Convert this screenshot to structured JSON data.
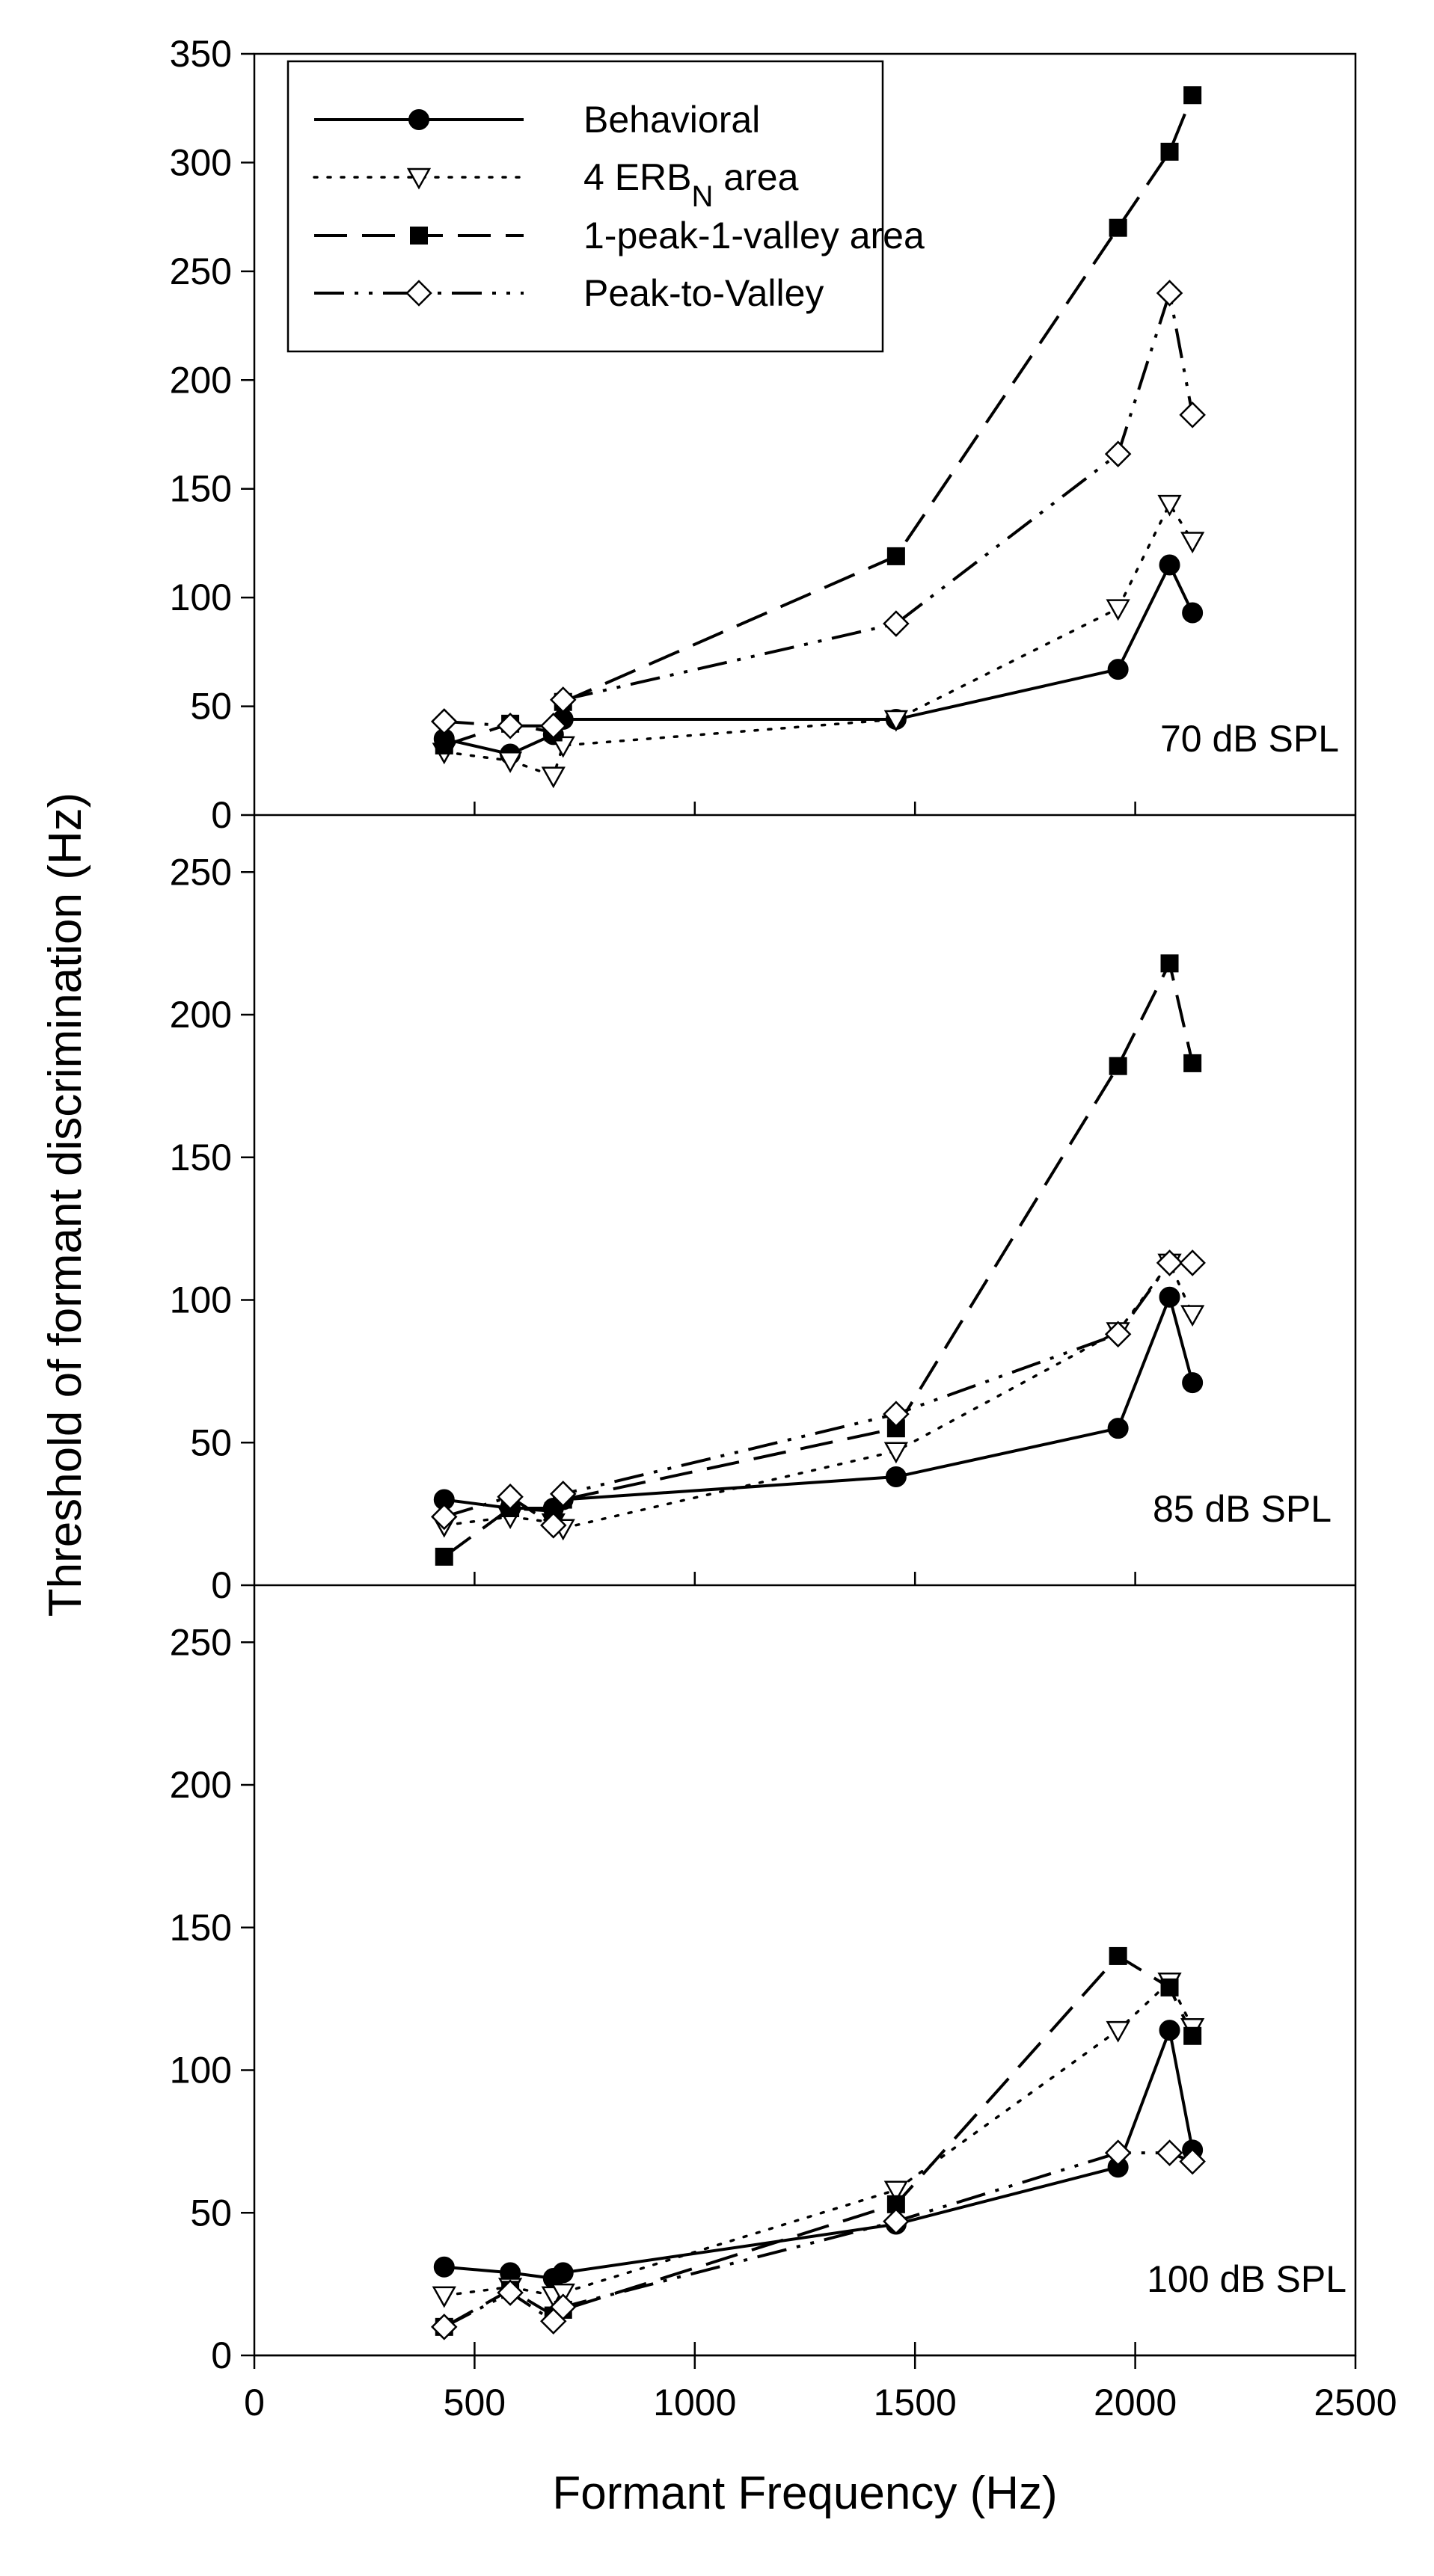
{
  "chart_data": {
    "type": "line",
    "xlabel": "Formant Frequency (Hz)",
    "ylabel": "Threshold of formant discrimination (Hz)",
    "xlim": [
      0,
      2500
    ],
    "x_ticks": [
      0,
      500,
      1000,
      1500,
      2000,
      2500
    ],
    "legend": {
      "placement": "top-left of top panel",
      "entries": [
        {
          "label": "Behavioral",
          "sub": ""
        },
        {
          "label": "4 ERB",
          "sub": "N",
          "suffix": " area"
        },
        {
          "label": "1-peak-1-valley area",
          "sub": ""
        },
        {
          "label": "Peak-to-Valley",
          "sub": ""
        }
      ]
    },
    "series_styles": [
      {
        "name": "Behavioral",
        "marker": "circle-filled",
        "line": "solid"
      },
      {
        "name": "4 ERBN area",
        "marker": "triangle-down-open",
        "line": "dotted"
      },
      {
        "name": "1-peak-1-valley area",
        "marker": "square-filled",
        "line": "dashed"
      },
      {
        "name": "Peak-to-Valley",
        "marker": "diamond-open",
        "line": "dash-dot-dot"
      }
    ],
    "panels": [
      {
        "label": "70 dB SPL",
        "ylim": [
          0,
          350
        ],
        "y_ticks": [
          0,
          50,
          100,
          150,
          200,
          250,
          300,
          350
        ],
        "series": [
          {
            "name": "Behavioral",
            "x": [
              431,
              581,
              679,
              701,
              1457,
              1961,
              2078,
              2130
            ],
            "y": [
              35,
              28,
              37,
              44,
              44,
              67,
              115,
              93
            ]
          },
          {
            "name": "4 ERBN area",
            "x": [
              431,
              581,
              679,
              701,
              1457,
              1961,
              2078,
              2130
            ],
            "y": [
              29,
              25,
              18,
              32,
              44,
              95,
              143,
              126
            ]
          },
          {
            "name": "1-peak-1-valley area",
            "x": [
              431,
              581,
              679,
              701,
              1457,
              1961,
              2078,
              2130
            ],
            "y": [
              32,
              42,
              38,
              52,
              119,
              270,
              305,
              331
            ]
          },
          {
            "name": "Peak-to-Valley",
            "x": [
              431,
              581,
              679,
              701,
              1457,
              1961,
              2078,
              2130
            ],
            "y": [
              43,
              41,
              41,
              53,
              88,
              166,
              240,
              184
            ]
          }
        ]
      },
      {
        "label": "85 dB SPL",
        "ylim": [
          0,
          270
        ],
        "y_ticks": [
          0,
          50,
          100,
          150,
          200,
          250
        ],
        "series": [
          {
            "name": "Behavioral",
            "x": [
              431,
              581,
              679,
              701,
              1457,
              1961,
              2078,
              2130
            ],
            "y": [
              30,
              27,
              27,
              30,
              38,
              55,
              101,
              71
            ]
          },
          {
            "name": "4 ERBN area",
            "x": [
              431,
              581,
              679,
              701,
              1457,
              1961,
              2078,
              2130
            ],
            "y": [
              21,
              24,
              22,
              20,
              47,
              89,
              113,
              95
            ]
          },
          {
            "name": "1-peak-1-valley area",
            "x": [
              431,
              581,
              679,
              701,
              1457,
              1961,
              2078,
              2130
            ],
            "y": [
              10,
              27,
              26,
              30,
              55,
              182,
              218,
              183
            ]
          },
          {
            "name": "Peak-to-Valley",
            "x": [
              431,
              581,
              679,
              701,
              1457,
              1961,
              2078,
              2130
            ],
            "y": [
              24,
              31,
              21,
              32,
              60,
              88,
              113,
              113
            ]
          }
        ]
      },
      {
        "label": "100 dB SPL",
        "ylim": [
          0,
          270
        ],
        "y_ticks": [
          0,
          50,
          100,
          150,
          200,
          250
        ],
        "series": [
          {
            "name": "Behavioral",
            "x": [
              431,
              581,
              679,
              701,
              1457,
              1961,
              2078,
              2130
            ],
            "y": [
              31,
              29,
              27,
              29,
              46,
              66,
              114,
              72
            ]
          },
          {
            "name": "4 ERBN area",
            "x": [
              431,
              581,
              679,
              701,
              1457,
              1961,
              2078,
              2130
            ],
            "y": [
              21,
              24,
              21,
              22,
              58,
              114,
              131,
              115
            ]
          },
          {
            "name": "1-peak-1-valley area",
            "x": [
              431,
              581,
              679,
              701,
              1457,
              1961,
              2078,
              2130
            ],
            "y": [
              10,
              23,
              14,
              16,
              53,
              140,
              129,
              112
            ]
          },
          {
            "name": "Peak-to-Valley",
            "x": [
              431,
              581,
              679,
              701,
              1457,
              1961,
              2078,
              2130
            ],
            "y": [
              10,
              22,
              12,
              17,
              47,
              71,
              71,
              68
            ]
          }
        ]
      }
    ]
  }
}
